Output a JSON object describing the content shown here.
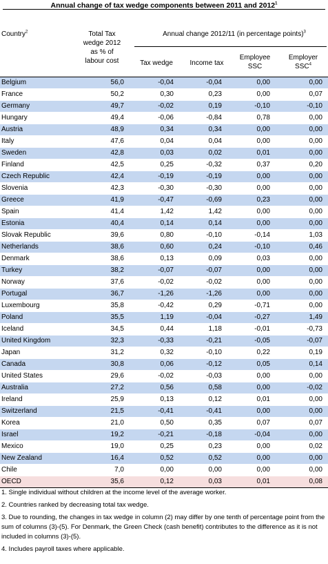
{
  "title": "Annual change of tax wedge components between 2011 and 2012",
  "title_note": "1",
  "headers": {
    "country": "Country",
    "country_note": "2",
    "total_line1": "Total Tax",
    "total_line2": "wedge 2012",
    "total_line3": "as % of",
    "total_line4": "labour cost",
    "annual": "Annual change 2012/11 (in percentage points)",
    "annual_note": "3",
    "tax_wedge": "Tax wedge",
    "income_tax": "Income tax",
    "employee_line1": "Employee",
    "employee_line2": "SSC",
    "employer_line1": "Employer",
    "employer_line2": "SSC",
    "employer_note": "4"
  },
  "rows": [
    {
      "country": "Belgium",
      "total": "56,0",
      "tw": "-0,04",
      "it": "-0,04",
      "ee": "0,00",
      "er": "0,00"
    },
    {
      "country": "France",
      "total": "50,2",
      "tw": "0,30",
      "it": "0,23",
      "ee": "0,00",
      "er": "0,07"
    },
    {
      "country": "Germany",
      "total": "49,7",
      "tw": "-0,02",
      "it": "0,19",
      "ee": "-0,10",
      "er": "-0,10"
    },
    {
      "country": "Hungary",
      "total": "49,4",
      "tw": "-0,06",
      "it": "-0,84",
      "ee": "0,78",
      "er": "0,00"
    },
    {
      "country": "Austria",
      "total": "48,9",
      "tw": "0,34",
      "it": "0,34",
      "ee": "0,00",
      "er": "0,00"
    },
    {
      "country": "Italy",
      "total": "47,6",
      "tw": "0,04",
      "it": "0,04",
      "ee": "0,00",
      "er": "0,00"
    },
    {
      "country": "Sweden",
      "total": "42,8",
      "tw": "0,03",
      "it": "0,02",
      "ee": "0,01",
      "er": "0,00"
    },
    {
      "country": "Finland",
      "total": "42,5",
      "tw": "0,25",
      "it": "-0,32",
      "ee": "0,37",
      "er": "0,20"
    },
    {
      "country": "Czech Republic",
      "total": "42,4",
      "tw": "-0,19",
      "it": "-0,19",
      "ee": "0,00",
      "er": "0,00"
    },
    {
      "country": "Slovenia",
      "total": "42,3",
      "tw": "-0,30",
      "it": "-0,30",
      "ee": "0,00",
      "er": "0,00"
    },
    {
      "country": "Greece",
      "total": "41,9",
      "tw": "-0,47",
      "it": "-0,69",
      "ee": "0,23",
      "er": "0,00"
    },
    {
      "country": "Spain",
      "total": "41,4",
      "tw": "1,42",
      "it": "1,42",
      "ee": "0,00",
      "er": "0,00"
    },
    {
      "country": "Estonia",
      "total": "40,4",
      "tw": "0,14",
      "it": "0,14",
      "ee": "0,00",
      "er": "0,00"
    },
    {
      "country": "Slovak Republic",
      "total": "39,6",
      "tw": "0,80",
      "it": "-0,10",
      "ee": "-0,14",
      "er": "1,03"
    },
    {
      "country": "Netherlands",
      "total": "38,6",
      "tw": "0,60",
      "it": "0,24",
      "ee": "-0,10",
      "er": "0,46"
    },
    {
      "country": "Denmark",
      "total": "38,6",
      "tw": "0,13",
      "it": "0,09",
      "ee": "0,03",
      "er": "0,00"
    },
    {
      "country": "Turkey",
      "total": "38,2",
      "tw": "-0,07",
      "it": "-0,07",
      "ee": "0,00",
      "er": "0,00"
    },
    {
      "country": "Norway",
      "total": "37,6",
      "tw": "-0,02",
      "it": "-0,02",
      "ee": "0,00",
      "er": "0,00"
    },
    {
      "country": "Portugal",
      "total": "36,7",
      "tw": "-1,26",
      "it": "-1,26",
      "ee": "0,00",
      "er": "0,00"
    },
    {
      "country": "Luxembourg",
      "total": "35,8",
      "tw": "-0,42",
      "it": "0,29",
      "ee": "-0,71",
      "er": "0,00"
    },
    {
      "country": "Poland",
      "total": "35,5",
      "tw": "1,19",
      "it": "-0,04",
      "ee": "-0,27",
      "er": "1,49"
    },
    {
      "country": "Iceland",
      "total": "34,5",
      "tw": "0,44",
      "it": "1,18",
      "ee": "-0,01",
      "er": "-0,73"
    },
    {
      "country": "United Kingdom",
      "total": "32,3",
      "tw": "-0,33",
      "it": "-0,21",
      "ee": "-0,05",
      "er": "-0,07"
    },
    {
      "country": "Japan",
      "total": "31,2",
      "tw": "0,32",
      "it": "-0,10",
      "ee": "0,22",
      "er": "0,19"
    },
    {
      "country": "Canada",
      "total": "30,8",
      "tw": "0,06",
      "it": "-0,12",
      "ee": "0,05",
      "er": "0,14"
    },
    {
      "country": "United States",
      "total": "29,6",
      "tw": "-0,02",
      "it": "-0,03",
      "ee": "0,00",
      "er": "0,00"
    },
    {
      "country": "Australia",
      "total": "27,2",
      "tw": "0,56",
      "it": "0,58",
      "ee": "0,00",
      "er": "-0,02"
    },
    {
      "country": "Ireland",
      "total": "25,9",
      "tw": "0,13",
      "it": "0,12",
      "ee": "0,01",
      "er": "0,00"
    },
    {
      "country": "Switzerland",
      "total": "21,5",
      "tw": "-0,41",
      "it": "-0,41",
      "ee": "0,00",
      "er": "0,00"
    },
    {
      "country": "Korea",
      "total": "21,0",
      "tw": "0,50",
      "it": "0,35",
      "ee": "0,07",
      "er": "0,07"
    },
    {
      "country": "Israel",
      "total": "19,2",
      "tw": "-0,21",
      "it": "-0,18",
      "ee": "-0,04",
      "er": "0,00"
    },
    {
      "country": "Mexico",
      "total": "19,0",
      "tw": "0,25",
      "it": "0,23",
      "ee": "0,00",
      "er": "0,02"
    },
    {
      "country": "New Zealand",
      "total": "16,4",
      "tw": "0,52",
      "it": "0,52",
      "ee": "0,00",
      "er": "0,00"
    },
    {
      "country": "Chile",
      "total": "7,0",
      "tw": "0,00",
      "it": "0,00",
      "ee": "0,00",
      "er": "0,00"
    }
  ],
  "oecd": {
    "country": "OECD",
    "total": "35,6",
    "tw": "0,12",
    "it": "0,03",
    "ee": "0,01",
    "er": "0,08"
  },
  "notes": [
    "1. Single individual without children at the income level of the average worker.",
    "2. Countries ranked by decreasing total tax wedge.",
    "3. Due to rounding, the changes in tax wedge in column (2) may differ by one tenth of percentage point from the sum of columns (3)-(5). For Denmark, the Green Check (cash benefit) contributes to the difference as it is not included in columns (3)-(5).",
    "4. Includes payroll taxes where applicable."
  ],
  "colors": {
    "row_shade": "#c5d7f0",
    "oecd_shade": "#f6dede"
  }
}
